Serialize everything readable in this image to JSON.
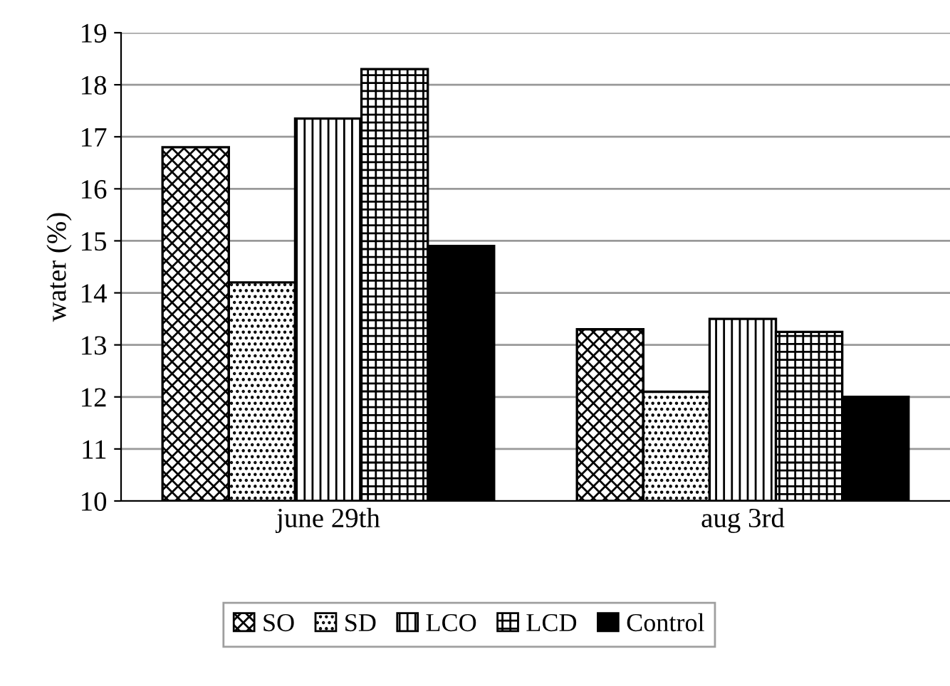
{
  "chart_data": {
    "type": "bar",
    "ylabel": "water (%)",
    "categories": [
      "june 29th",
      "aug 3rd"
    ],
    "series": [
      {
        "name": "SO",
        "color": "#000000",
        "values": [
          16.8,
          13.3
        ]
      },
      {
        "name": "SD",
        "color": "#000000",
        "values": [
          14.2,
          12.1
        ]
      },
      {
        "name": "LCO",
        "color": "#000000",
        "values": [
          17.35,
          13.5
        ]
      },
      {
        "name": "LCD",
        "color": "#000000",
        "values": [
          18.3,
          13.25
        ]
      },
      {
        "name": "Control",
        "color": "#000000",
        "values": [
          14.9,
          12.0
        ]
      }
    ],
    "ylim": [
      10,
      19
    ],
    "yticks": [
      10,
      11,
      12,
      13,
      14,
      15,
      16,
      17,
      18,
      19
    ],
    "grid": "y",
    "legend": "bottom"
  }
}
